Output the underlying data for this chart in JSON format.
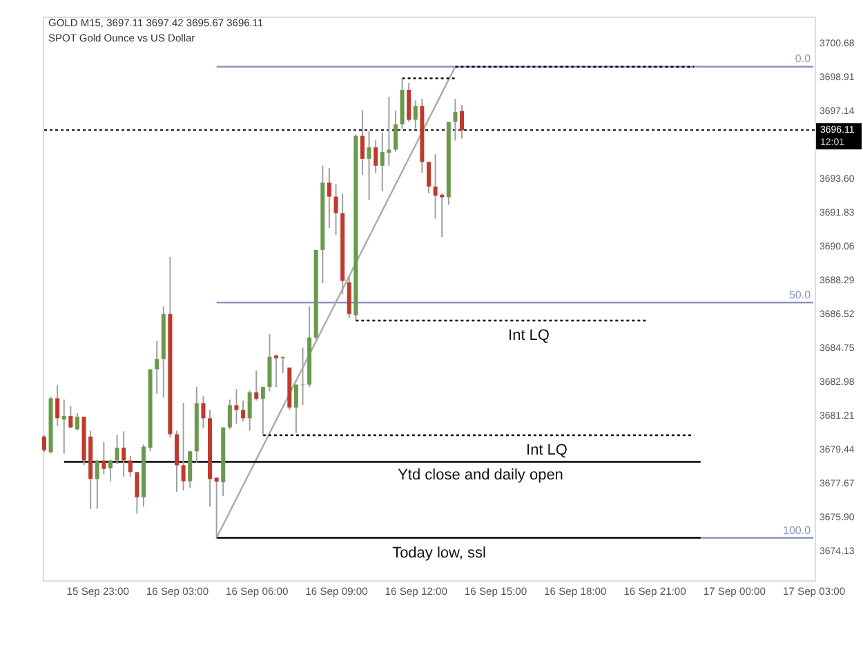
{
  "chart_data": {
    "type": "candlestick",
    "title": "GOLD M15, 3697.11 3697.42 3695.67 3696.11",
    "subtitle": "SPOT Gold Ounce vs US Dollar",
    "categories": [
      null,
      null,
      null,
      null,
      null,
      null,
      null,
      null,
      "15 Sep 23:00",
      null,
      null,
      null,
      null,
      null,
      null,
      null,
      null,
      null,
      null,
      null,
      "16 Sep 03:00",
      null,
      null,
      null,
      null,
      null,
      null,
      null,
      null,
      null,
      null,
      null,
      "16 Sep 06:00",
      null,
      null,
      null,
      null,
      null,
      null,
      null,
      null,
      null,
      null,
      null,
      "16 Sep 09:00",
      null,
      null,
      null,
      null,
      null,
      null,
      null,
      null,
      null,
      null,
      null,
      "16 Sep 12:00",
      null,
      null,
      null,
      null,
      null,
      null,
      null,
      null,
      null,
      null,
      null,
      "16 Sep 15:00",
      null,
      null,
      null,
      null,
      null,
      null,
      null,
      null,
      null,
      null,
      null,
      "16 Sep 18:00",
      null,
      null,
      null,
      null,
      null,
      null,
      null,
      null,
      null,
      null,
      null,
      "16 Sep 21:00",
      null,
      null,
      null,
      null,
      null,
      null,
      null,
      null,
      null,
      null,
      null,
      "17 Sep 00:00",
      null,
      null,
      null,
      null,
      null,
      null,
      null,
      null,
      null,
      null,
      null,
      "17 Sep 03:00"
    ],
    "ohlc": [
      [
        3680.08,
        3680.15,
        3679.28,
        3679.36
      ],
      [
        3679.26,
        3682.15,
        3679.19,
        3682.08
      ],
      [
        3682.08,
        3682.77,
        3680.64,
        3681.04
      ],
      [
        3680.97,
        3682.01,
        3679.19,
        3681.16
      ],
      [
        3681.16,
        3681.67,
        3680.51,
        3680.56
      ],
      [
        3680.46,
        3681.31,
        3680.39,
        3681.11
      ],
      [
        3681.11,
        3681.11,
        3678.58,
        3678.83
      ],
      [
        3680.08,
        3680.39,
        3676.3,
        3677.86
      ],
      [
        3677.86,
        3678.83,
        3676.3,
        3678.83
      ],
      [
        3678.83,
        3679.79,
        3678.11,
        3678.39
      ],
      [
        3678.42,
        3678.87,
        3677.74,
        3678.83
      ],
      [
        3678.83,
        3680.15,
        3678.63,
        3679.5
      ],
      [
        3679.5,
        3680.35,
        3677.98,
        3678.83
      ],
      [
        3678.83,
        3679.07,
        3677.98,
        3678.22
      ],
      [
        3678.22,
        3678.22,
        3676.05,
        3676.9
      ],
      [
        3676.9,
        3679.67,
        3676.41,
        3679.55
      ],
      [
        3679.5,
        3683.6,
        3679.31,
        3683.6
      ],
      [
        3683.6,
        3685.09,
        3682.32,
        3684.13
      ],
      [
        3684.13,
        3686.89,
        3682.12,
        3686.49
      ],
      [
        3686.49,
        3689.47,
        3680.03,
        3680.2
      ],
      [
        3680.2,
        3680.39,
        3677.19,
        3678.58
      ],
      [
        3678.58,
        3681.83,
        3677.26,
        3677.74
      ],
      [
        3677.74,
        3679.31,
        3677.38,
        3679.31
      ],
      [
        3679.31,
        3682.68,
        3678.71,
        3681.83
      ],
      [
        3681.83,
        3682.2,
        3680.51,
        3681.04
      ],
      [
        3681.04,
        3681.47,
        3676.41,
        3677.86
      ],
      [
        3677.93,
        3677.93,
        3674.78,
        3677.72
      ],
      [
        3677.69,
        3680.56,
        3676.97,
        3680.56
      ],
      [
        3680.56,
        3682.01,
        3680.46,
        3681.72
      ],
      [
        3681.72,
        3682.56,
        3680.75,
        3681.47
      ],
      [
        3681.47,
        3681.96,
        3680.87,
        3681.04
      ],
      [
        3681.04,
        3682.49,
        3680.39,
        3682.39
      ],
      [
        3682.39,
        3683.53,
        3681.96,
        3682.05
      ],
      [
        3682.05,
        3682.68,
        3680.15,
        3682.68
      ],
      [
        3682.68,
        3685.45,
        3682.44,
        3684.25
      ],
      [
        3684.32,
        3684.36,
        3682.68,
        3684.18
      ],
      [
        3684.18,
        3684.25,
        3683.4,
        3684.25
      ],
      [
        3683.69,
        3683.69,
        3681.47,
        3681.6
      ],
      [
        3681.6,
        3682.8,
        3680.27,
        3682.8
      ],
      [
        3682.77,
        3684.73,
        3681.72,
        3682.8
      ],
      [
        3682.8,
        3686.89,
        3682.68,
        3685.26
      ],
      [
        3685.26,
        3689.84,
        3685.14,
        3689.84
      ],
      [
        3689.84,
        3694.25,
        3688.1,
        3693.36
      ],
      [
        3693.36,
        3694.12,
        3690.99,
        3692.63
      ],
      [
        3692.63,
        3693.28,
        3690.63,
        3691.77
      ],
      [
        3691.77,
        3692.8,
        3687.52,
        3688.22
      ],
      [
        3688.15,
        3688.46,
        3686.29,
        3686.49
      ],
      [
        3686.42,
        3695.89,
        3686.17,
        3695.81
      ],
      [
        3695.81,
        3697.14,
        3693.76,
        3694.61
      ],
      [
        3694.61,
        3696.05,
        3692.44,
        3695.21
      ],
      [
        3695.21,
        3695.57,
        3693.88,
        3694.25
      ],
      [
        3694.25,
        3695.98,
        3692.92,
        3694.97
      ],
      [
        3694.92,
        3697.86,
        3694.25,
        3695.09
      ],
      [
        3695.09,
        3697.14,
        3694.97,
        3696.41
      ],
      [
        3696.41,
        3698.82,
        3696.18,
        3698.22
      ],
      [
        3698.22,
        3698.58,
        3696.54,
        3696.65
      ],
      [
        3696.65,
        3697.66,
        3696.18,
        3697.37
      ],
      [
        3697.37,
        3697.74,
        3693.88,
        3694.44
      ],
      [
        3694.44,
        3694.44,
        3692.8,
        3693.16
      ],
      [
        3693.16,
        3694.85,
        3691.48,
        3692.68
      ],
      [
        3692.73,
        3692.8,
        3690.51,
        3692.6
      ],
      [
        3692.6,
        3696.54,
        3692.2,
        3696.54
      ],
      [
        3696.54,
        3697.74,
        3695.57,
        3697.06
      ],
      [
        3697.11,
        3697.42,
        3695.67,
        3696.11
      ],
      null,
      null,
      null,
      null,
      null,
      null,
      null,
      null,
      null,
      null,
      null,
      null,
      null,
      null,
      null,
      null,
      null,
      null,
      null,
      null,
      null,
      null,
      null,
      null,
      null,
      null,
      null,
      null,
      null,
      null,
      null,
      null,
      null,
      null,
      null,
      null,
      null,
      null,
      null,
      null,
      null,
      null,
      null,
      null,
      null,
      null,
      null,
      null,
      null,
      null,
      null,
      null,
      null
    ],
    "colors": [
      "#c0392b",
      "#6a994e",
      "#c0392b",
      "#6a994e",
      "#c0392b",
      "#6a994e",
      "#c0392b",
      "#c0392b",
      "#6a994e",
      "#c0392b",
      "#6a994e",
      "#6a994e",
      "#c0392b",
      "#c0392b",
      "#c0392b",
      "#6a994e",
      "#6a994e",
      "#6a994e",
      "#6a994e",
      "#c0392b",
      "#c0392b",
      "#c0392b",
      "#6a994e",
      "#6a994e",
      "#c0392b",
      "#c0392b",
      "#c0392b",
      "#6a994e",
      "#6a994e",
      "#c0392b",
      "#c0392b",
      "#6a994e",
      "#c0392b",
      "#6a994e",
      "#6a994e",
      "#c0392b",
      "#6a994e",
      "#c0392b",
      "#6a994e",
      "#6a994e",
      "#6a994e",
      "#6a994e",
      "#6a994e",
      "#c0392b",
      "#c0392b",
      "#c0392b",
      "#c0392b",
      "#6a994e",
      "#c0392b",
      "#6a994e",
      "#c0392b",
      "#6a994e",
      "#6a994e",
      "#6a994e",
      "#6a994e",
      "#c0392b",
      "#6a994e",
      "#c0392b",
      "#c0392b",
      "#c0392b",
      "#c0392b",
      "#6a994e",
      "#6a994e",
      "#c0392b",
      null,
      null,
      null,
      null,
      null,
      null,
      null,
      null,
      null,
      null,
      null,
      null,
      null,
      null,
      null,
      null,
      null,
      null,
      null,
      null,
      null,
      null,
      null,
      null,
      null,
      null,
      null,
      null,
      null,
      null,
      null,
      null,
      null,
      null,
      null,
      null,
      null,
      null,
      null,
      null,
      null,
      null,
      null,
      null,
      null,
      null,
      null,
      null,
      null,
      null,
      null,
      null,
      null
    ],
    "ylim": [
      3672.56,
      3702.05
    ],
    "yticks": [
      3674.13,
      {
        "value": 3675.9,
        "label": "3675.90"
      },
      3677.67,
      3679.44,
      3681.21,
      3682.98,
      3684.75,
      3686.52,
      3688.29,
      3690.06,
      3691.83,
      {
        "value": 3693.6,
        "label": "3693.60"
      },
      3697.14,
      3698.91,
      3700.68
    ],
    "grid": false,
    "series": [
      {
        "type": "line",
        "name": "0.0",
        "color": "#8a93c2",
        "line_style": "solid",
        "values": [
          null,
          null,
          null,
          null,
          null,
          null,
          null,
          null,
          null,
          null,
          null,
          null,
          null,
          null,
          null,
          null,
          null,
          null,
          null,
          null,
          null,
          null,
          null,
          null,
          null,
          null,
          3699.43,
          3699.43,
          3699.43,
          3699.43,
          3699.43,
          3699.43,
          3699.43,
          3699.43,
          3699.43,
          3699.43,
          3699.43,
          3699.43,
          3699.43,
          3699.43,
          3699.43,
          3699.43,
          3699.43,
          3699.43,
          3699.43,
          3699.43,
          3699.43,
          3699.43,
          3699.43,
          3699.43,
          3699.43,
          3699.43,
          3699.43,
          3699.43,
          3699.43,
          3699.43,
          3699.43,
          3699.43,
          3699.43,
          3699.43,
          3699.43,
          3699.43,
          3699.43,
          3699.43,
          3699.43,
          3699.43,
          3699.43,
          3699.43,
          3699.43,
          3699.43,
          3699.43,
          3699.43,
          3699.43,
          3699.43,
          3699.43,
          3699.43,
          3699.43,
          3699.43,
          3699.43,
          3699.43,
          3699.43,
          3699.43,
          3699.43,
          3699.43,
          3699.43,
          3699.43,
          3699.43,
          3699.43,
          3699.43,
          3699.43,
          3699.43,
          3699.43,
          3699.43,
          3699.43,
          3699.43,
          3699.43,
          3699.43,
          3699.43,
          3699.43,
          3699.43,
          3699.43,
          3699.43,
          3699.43,
          3699.43,
          3699.43,
          3699.43,
          3699.43,
          3699.43,
          3699.43,
          3699.43,
          3699.43,
          3699.43,
          3699.43,
          3699.43,
          3699.43,
          3699.43,
          3699.43
        ]
      },
      {
        "type": "line",
        "name": "50.0",
        "color": "#8a93c2",
        "line_style": "solid",
        "values": [
          null,
          null,
          null,
          null,
          null,
          null,
          null,
          null,
          null,
          null,
          null,
          null,
          null,
          null,
          null,
          null,
          null,
          null,
          null,
          null,
          null,
          null,
          null,
          null,
          null,
          null,
          3687.09,
          3687.09,
          3687.09,
          3687.09,
          3687.09,
          3687.09,
          3687.09,
          3687.09,
          3687.09,
          3687.09,
          3687.09,
          3687.09,
          3687.09,
          3687.09,
          3687.09,
          3687.09,
          3687.09,
          3687.09,
          3687.09,
          3687.09,
          3687.09,
          3687.09,
          3687.09,
          3687.09,
          3687.09,
          3687.09,
          3687.09,
          3687.09,
          3687.09,
          3687.09,
          3687.09,
          3687.09,
          3687.09,
          3687.09,
          3687.09,
          3687.09,
          3687.09,
          3687.09,
          3687.09,
          3687.09,
          3687.09,
          3687.09,
          3687.09,
          3687.09,
          3687.09,
          3687.09,
          3687.09,
          3687.09,
          3687.09,
          3687.09,
          3687.09,
          3687.09,
          3687.09,
          3687.09,
          3687.09,
          3687.09,
          3687.09,
          3687.09,
          3687.09,
          3687.09,
          3687.09,
          3687.09,
          3687.09,
          3687.09,
          3687.09,
          3687.09,
          3687.09,
          3687.09,
          3687.09,
          3687.09,
          3687.09,
          3687.09,
          3687.09,
          3687.09,
          3687.09,
          3687.09,
          3687.09,
          3687.09,
          3687.09,
          3687.09,
          3687.09,
          3687.09,
          3687.09,
          3687.09,
          3687.09,
          3687.09,
          3687.09,
          3687.09,
          3687.09,
          3687.09,
          3687.09
        ]
      },
      {
        "type": "line",
        "name": "100.0",
        "color": "#8a93c2",
        "line_style": "solid",
        "values": [
          null,
          null,
          null,
          null,
          null,
          null,
          null,
          null,
          null,
          null,
          null,
          null,
          null,
          null,
          null,
          null,
          null,
          null,
          null,
          null,
          null,
          null,
          null,
          null,
          null,
          null,
          null,
          null,
          null,
          null,
          null,
          null,
          null,
          null,
          null,
          null,
          null,
          null,
          null,
          null,
          null,
          null,
          null,
          null,
          null,
          null,
          null,
          null,
          null,
          null,
          null,
          null,
          null,
          null,
          null,
          null,
          null,
          null,
          null,
          null,
          null,
          null,
          null,
          null,
          null,
          null,
          null,
          null,
          null,
          null,
          null,
          null,
          null,
          null,
          null,
          null,
          null,
          null,
          null,
          null,
          null,
          null,
          null,
          null,
          null,
          null,
          null,
          null,
          null,
          null,
          null,
          null,
          null,
          null,
          null,
          null,
          null,
          null,
          null,
          3674.78,
          3674.78,
          3674.78,
          3674.78,
          3674.78,
          3674.78,
          3674.78,
          3674.78,
          3674.78,
          3674.78,
          3674.78,
          3674.78,
          3674.78,
          3674.78,
          3674.78,
          3674.78,
          3674.78,
          3674.78
        ]
      },
      {
        "type": "line",
        "color": "#aaaaaa",
        "line_style": "solid",
        "values": [
          null,
          null,
          null,
          null,
          null,
          null,
          null,
          null,
          null,
          null,
          null,
          null,
          null,
          null,
          null,
          null,
          null,
          null,
          null,
          null,
          null,
          null,
          null,
          null,
          null,
          null,
          3674.78,
          3675.46,
          3676.15,
          3676.83,
          3677.52,
          3678.2,
          3678.89,
          3679.57,
          3680.26,
          3680.94,
          3681.63,
          3682.31,
          3683.0,
          3683.68,
          3684.37,
          3685.05,
          3685.74,
          3686.42,
          3687.11,
          3687.79,
          3688.47,
          3689.16,
          3689.84,
          3690.53,
          3691.21,
          3691.9,
          3692.58,
          3693.27,
          3693.95,
          3694.64,
          3695.32,
          3696.01,
          3696.69,
          3697.38,
          3698.06,
          3698.75,
          3699.43,
          null,
          null,
          null,
          null,
          null,
          null,
          null,
          null,
          null,
          null,
          null,
          null,
          null,
          null,
          null,
          null,
          null,
          null,
          null,
          null,
          null,
          null,
          null,
          null,
          null,
          null,
          null,
          null,
          null,
          null,
          null,
          null,
          null,
          null,
          null,
          null,
          null,
          null,
          null,
          null,
          null,
          null,
          null,
          null,
          null,
          null,
          null,
          null,
          null,
          null,
          null,
          null,
          null,
          null
        ]
      },
      {
        "type": "line",
        "color": "#000000",
        "line_style": "dotted",
        "values": [
          null,
          null,
          null,
          null,
          null,
          null,
          null,
          null,
          null,
          null,
          null,
          null,
          null,
          null,
          null,
          null,
          null,
          null,
          null,
          null,
          null,
          null,
          null,
          null,
          null,
          null,
          null,
          null,
          null,
          null,
          null,
          null,
          null,
          null,
          null,
          null,
          null,
          null,
          null,
          null,
          null,
          null,
          null,
          null,
          null,
          null,
          null,
          null,
          null,
          null,
          null,
          null,
          null,
          null,
          3698.82,
          3698.82,
          3698.82,
          3698.82,
          3698.82,
          3698.82,
          3698.82,
          3698.82,
          3698.82,
          null,
          null,
          null,
          null,
          null,
          null,
          null,
          null,
          null,
          null,
          null,
          null,
          null,
          null,
          null,
          null,
          null,
          null,
          null,
          null,
          null,
          null,
          null,
          null,
          null,
          null,
          null,
          null,
          null,
          null,
          null,
          null,
          null,
          null,
          null,
          null,
          null,
          null,
          null,
          null,
          null,
          null,
          null,
          null,
          null,
          null,
          null,
          null,
          null,
          null,
          null,
          null,
          null,
          null
        ]
      },
      {
        "type": "line",
        "color": "#000000",
        "line_style": "dotted",
        "values": [
          null,
          null,
          null,
          null,
          null,
          null,
          null,
          null,
          null,
          null,
          null,
          null,
          null,
          null,
          null,
          null,
          null,
          null,
          null,
          null,
          null,
          null,
          null,
          null,
          null,
          null,
          null,
          null,
          null,
          null,
          null,
          null,
          null,
          null,
          null,
          null,
          null,
          null,
          null,
          null,
          null,
          null,
          null,
          null,
          null,
          null,
          null,
          null,
          null,
          null,
          null,
          null,
          null,
          null,
          null,
          null,
          null,
          null,
          null,
          null,
          null,
          null,
          3699.43,
          3699.43,
          3699.43,
          3699.43,
          3699.43,
          3699.43,
          3699.43,
          3699.43,
          3699.43,
          3699.43,
          3699.43,
          3699.43,
          3699.43,
          3699.43,
          3699.43,
          3699.43,
          3699.43,
          3699.43,
          3699.43,
          3699.43,
          3699.43,
          3699.43,
          3699.43,
          3699.43,
          3699.43,
          3699.43,
          3699.43,
          3699.43,
          3699.43,
          3699.43,
          3699.43,
          3699.43,
          3699.43,
          3699.43,
          3699.43,
          3699.43,
          3699.43,
          null,
          null,
          null,
          null,
          null,
          null,
          null,
          null,
          null,
          null,
          null,
          null,
          null,
          null,
          null,
          null,
          null,
          null
        ]
      },
      {
        "type": "line",
        "color": "#000000",
        "line_style": "dotted",
        "values": [
          null,
          null,
          null,
          null,
          null,
          null,
          null,
          null,
          null,
          null,
          null,
          null,
          null,
          null,
          null,
          null,
          null,
          null,
          null,
          null,
          null,
          null,
          null,
          null,
          null,
          null,
          null,
          null,
          null,
          null,
          null,
          null,
          null,
          null,
          null,
          null,
          null,
          null,
          null,
          null,
          null,
          null,
          null,
          null,
          null,
          null,
          null,
          3686.15,
          3686.15,
          3686.15,
          3686.15,
          3686.15,
          3686.15,
          3686.15,
          3686.15,
          3686.15,
          3686.15,
          3686.15,
          3686.15,
          3686.15,
          3686.15,
          3686.15,
          3686.15,
          3686.15,
          3686.15,
          3686.15,
          3686.15,
          3686.15,
          3686.15,
          3686.15,
          3686.15,
          3686.15,
          3686.15,
          3686.15,
          3686.15,
          3686.15,
          3686.15,
          3686.15,
          3686.15,
          3686.15,
          3686.15,
          3686.15,
          3686.15,
          3686.15,
          3686.15,
          3686.15,
          3686.15,
          3686.15,
          3686.15,
          3686.15,
          3686.15,
          3686.15,
          null,
          null,
          null,
          null,
          null,
          null,
          null,
          null,
          null,
          null,
          null,
          null,
          null,
          null,
          null,
          null,
          null,
          null,
          null,
          null,
          null,
          null,
          null,
          null,
          null
        ]
      },
      {
        "type": "line",
        "color": "#000000",
        "line_style": "dotted",
        "values": [
          null,
          null,
          null,
          null,
          null,
          null,
          null,
          null,
          null,
          null,
          null,
          null,
          null,
          null,
          null,
          null,
          null,
          null,
          null,
          null,
          null,
          null,
          null,
          null,
          null,
          null,
          null,
          null,
          null,
          null,
          null,
          null,
          null,
          3680.15,
          3680.15,
          3680.15,
          3680.15,
          3680.15,
          3680.15,
          3680.15,
          3680.15,
          3680.15,
          3680.15,
          3680.15,
          3680.15,
          3680.15,
          3680.15,
          3680.15,
          3680.15,
          3680.15,
          3680.15,
          3680.15,
          3680.15,
          3680.15,
          3680.15,
          3680.15,
          3680.15,
          3680.15,
          3680.15,
          3680.15,
          3680.15,
          3680.15,
          3680.15,
          3680.15,
          3680.15,
          3680.15,
          3680.15,
          3680.15,
          3680.15,
          3680.15,
          3680.15,
          3680.15,
          3680.15,
          3680.15,
          3680.15,
          3680.15,
          3680.15,
          3680.15,
          3680.15,
          3680.15,
          3680.15,
          3680.15,
          3680.15,
          3680.15,
          3680.15,
          3680.15,
          3680.15,
          3680.15,
          3680.15,
          3680.15,
          3680.15,
          3680.15,
          3680.15,
          3680.15,
          3680.15,
          3680.15,
          3680.15,
          3680.15,
          3680.15,
          null,
          null,
          null,
          null,
          null,
          null,
          null,
          null,
          null,
          null,
          null,
          null,
          null,
          null,
          null,
          null,
          null,
          null
        ]
      },
      {
        "type": "line",
        "color": "#000000",
        "line_style": "solid",
        "values": [
          null,
          null,
          null,
          3678.76,
          3678.76,
          3678.76,
          3678.76,
          3678.76,
          3678.76,
          3678.76,
          3678.76,
          3678.76,
          3678.76,
          3678.76,
          3678.76,
          3678.76,
          3678.76,
          3678.76,
          3678.76,
          3678.76,
          3678.76,
          3678.76,
          3678.76,
          3678.76,
          3678.76,
          3678.76,
          3678.76,
          3678.76,
          3678.76,
          3678.76,
          3678.76,
          3678.76,
          3678.76,
          3678.76,
          3678.76,
          3678.76,
          3678.76,
          3678.76,
          3678.76,
          3678.76,
          3678.76,
          3678.76,
          3678.76,
          3678.76,
          3678.76,
          3678.76,
          3678.76,
          3678.76,
          3678.76,
          3678.76,
          3678.76,
          3678.76,
          3678.76,
          3678.76,
          3678.76,
          3678.76,
          3678.76,
          3678.76,
          3678.76,
          3678.76,
          3678.76,
          3678.76,
          3678.76,
          3678.76,
          3678.76,
          3678.76,
          3678.76,
          3678.76,
          3678.76,
          3678.76,
          3678.76,
          3678.76,
          3678.76,
          3678.76,
          3678.76,
          3678.76,
          3678.76,
          3678.76,
          3678.76,
          3678.76,
          3678.76,
          3678.76,
          3678.76,
          3678.76,
          3678.76,
          3678.76,
          3678.76,
          3678.76,
          3678.76,
          3678.76,
          3678.76,
          3678.76,
          3678.76,
          3678.76,
          3678.76,
          3678.76,
          3678.76,
          3678.76,
          3678.76,
          3678.76,
          null,
          null,
          null,
          null,
          null,
          null,
          null,
          null,
          null,
          null,
          null,
          null,
          null,
          null,
          null,
          null,
          null
        ]
      },
      {
        "type": "line",
        "color": "#000000",
        "line_style": "solid",
        "values": [
          null,
          null,
          null,
          null,
          null,
          null,
          null,
          null,
          null,
          null,
          null,
          null,
          null,
          null,
          null,
          null,
          null,
          null,
          null,
          null,
          null,
          null,
          null,
          null,
          null,
          null,
          3674.78,
          3674.78,
          3674.78,
          3674.78,
          3674.78,
          3674.78,
          3674.78,
          3674.78,
          3674.78,
          3674.78,
          3674.78,
          3674.78,
          3674.78,
          3674.78,
          3674.78,
          3674.78,
          3674.78,
          3674.78,
          3674.78,
          3674.78,
          3674.78,
          3674.78,
          3674.78,
          3674.78,
          3674.78,
          3674.78,
          3674.78,
          3674.78,
          3674.78,
          3674.78,
          3674.78,
          3674.78,
          3674.78,
          3674.78,
          3674.78,
          3674.78,
          3674.78,
          3674.78,
          3674.78,
          3674.78,
          3674.78,
          3674.78,
          3674.78,
          3674.78,
          3674.78,
          3674.78,
          3674.78,
          3674.78,
          3674.78,
          3674.78,
          3674.78,
          3674.78,
          3674.78,
          3674.78,
          3674.78,
          3674.78,
          3674.78,
          3674.78,
          3674.78,
          3674.78,
          3674.78,
          3674.78,
          3674.78,
          3674.78,
          3674.78,
          3674.78,
          3674.78,
          3674.78,
          3674.78,
          3674.78,
          3674.78,
          3674.78,
          3674.78,
          3674.78,
          null,
          null,
          null,
          null,
          null,
          null,
          null,
          null,
          null,
          null,
          null,
          null,
          null,
          null,
          null,
          null,
          null
        ]
      }
    ],
    "ref_lines": [
      {
        "axis": "y",
        "value": 3696.11,
        "label": "3696.11",
        "color": "#000000",
        "line_style": "dotted"
      }
    ],
    "annotations": [
      {
        "text": "Int LQ",
        "y": 3686.15
      },
      {
        "text": "Int LQ",
        "y": 3680.15
      },
      {
        "text": "Ytd close and daily open",
        "y": 3678.76
      },
      {
        "text": "Today low, ssl",
        "y": 3674.78
      },
      "12:01"
    ]
  }
}
